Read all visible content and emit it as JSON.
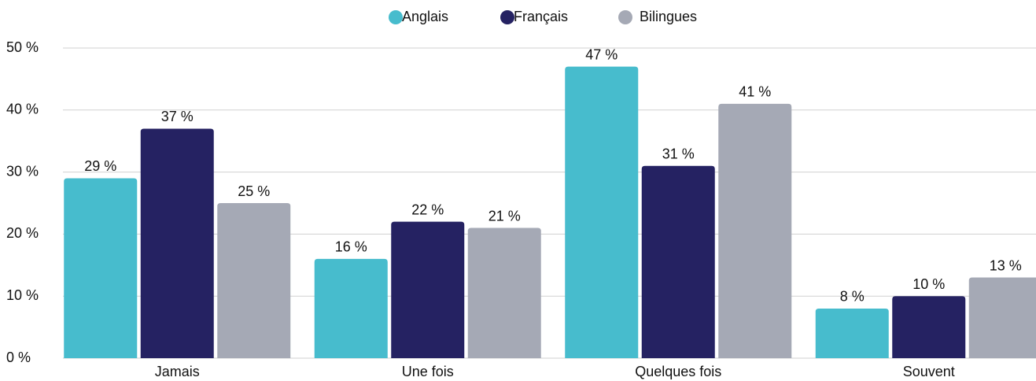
{
  "chart_data": {
    "type": "bar",
    "categories": [
      "Jamais",
      "Une fois",
      "Quelques fois",
      "Souvent"
    ],
    "series": [
      {
        "name": "Anglais",
        "color": "#47bccd",
        "values": [
          29,
          16,
          47,
          8
        ],
        "value_labels": [
          "29 %",
          "16 %",
          "47 %",
          "8 %"
        ]
      },
      {
        "name": "Français",
        "color": "#252262",
        "values": [
          37,
          22,
          31,
          10
        ],
        "value_labels": [
          "37 %",
          "22 %",
          "31 %",
          "10 %"
        ]
      },
      {
        "name": "Bilingues",
        "color": "#a5a9b5",
        "values": [
          25,
          21,
          41,
          13
        ],
        "value_labels": [
          "25 %",
          "21 %",
          "41 %",
          "13 %"
        ]
      }
    ],
    "ylim": [
      0,
      50
    ],
    "yticks": [
      {
        "value": 0,
        "label": "0 %"
      },
      {
        "value": 10,
        "label": "10 %"
      },
      {
        "value": 20,
        "label": "20 %"
      },
      {
        "value": 30,
        "label": "30 %"
      },
      {
        "value": 40,
        "label": "40 %"
      },
      {
        "value": 50,
        "label": "50 %"
      }
    ],
    "grid": true,
    "legend": "top"
  }
}
